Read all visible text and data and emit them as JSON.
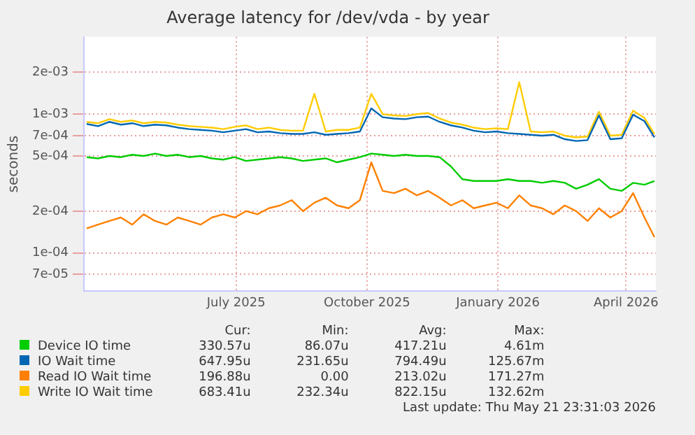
{
  "chart_data": {
    "type": "line",
    "title": "Average latency for /dev/vda - by year",
    "ylabel": "seconds",
    "log": "y",
    "x": [
      "2025-03-18",
      "2025-03-26",
      "2025-04-03",
      "2025-04-11",
      "2025-04-19",
      "2025-04-27",
      "2025-05-05",
      "2025-05-13",
      "2025-05-21",
      "2025-05-29",
      "2025-06-06",
      "2025-06-14",
      "2025-06-22",
      "2025-06-30",
      "2025-07-08",
      "2025-07-16",
      "2025-07-24",
      "2025-08-01",
      "2025-08-09",
      "2025-08-17",
      "2025-08-25",
      "2025-09-02",
      "2025-09-10",
      "2025-09-18",
      "2025-09-26",
      "2025-10-04",
      "2025-10-12",
      "2025-10-20",
      "2025-10-28",
      "2025-11-05",
      "2025-11-13",
      "2025-11-21",
      "2025-11-29",
      "2025-12-07",
      "2025-12-15",
      "2025-12-23",
      "2025-12-31",
      "2026-01-08",
      "2026-01-16",
      "2026-01-24",
      "2026-02-01",
      "2026-02-09",
      "2026-02-17",
      "2026-02-25",
      "2026-03-05",
      "2026-03-13",
      "2026-03-21",
      "2026-03-29",
      "2026-04-06",
      "2026-04-14",
      "2026-04-21"
    ],
    "series": [
      {
        "name": "Device IO time",
        "color": "#00cc00",
        "values": [
          0.00049,
          0.00048,
          0.0005,
          0.00049,
          0.00051,
          0.0005,
          0.00052,
          0.0005,
          0.00051,
          0.00049,
          0.0005,
          0.00048,
          0.00047,
          0.00049,
          0.00046,
          0.00047,
          0.00048,
          0.00049,
          0.00048,
          0.00046,
          0.00047,
          0.00048,
          0.00045,
          0.00047,
          0.00049,
          0.00052,
          0.00051,
          0.0005,
          0.00051,
          0.0005,
          0.0005,
          0.00049,
          0.00042,
          0.00034,
          0.00033,
          0.00033,
          0.00033,
          0.00034,
          0.00033,
          0.00033,
          0.00032,
          0.00033,
          0.00032,
          0.00029,
          0.00031,
          0.00034,
          0.00029,
          0.00028,
          0.00032,
          0.00031,
          0.00033
        ]
      },
      {
        "name": "IO Wait time",
        "color": "#0066b3",
        "values": [
          0.00085,
          0.00082,
          0.00088,
          0.00084,
          0.00086,
          0.00082,
          0.00084,
          0.00083,
          0.0008,
          0.00078,
          0.00077,
          0.00076,
          0.00074,
          0.00076,
          0.00078,
          0.00074,
          0.00075,
          0.00073,
          0.00072,
          0.00072,
          0.00074,
          0.00071,
          0.00072,
          0.00073,
          0.00075,
          0.0011,
          0.00095,
          0.00093,
          0.00092,
          0.00095,
          0.00096,
          0.00088,
          0.00083,
          0.0008,
          0.00076,
          0.00074,
          0.00075,
          0.00073,
          0.00072,
          0.00071,
          0.0007,
          0.00071,
          0.00066,
          0.00064,
          0.00065,
          0.00098,
          0.00066,
          0.00067,
          0.00099,
          0.00089,
          0.00068
        ]
      },
      {
        "name": "Read IO Wait time",
        "color": "#ff8000",
        "values": [
          0.00015,
          0.00016,
          0.00017,
          0.00018,
          0.00016,
          0.00019,
          0.00017,
          0.00016,
          0.00018,
          0.00017,
          0.00016,
          0.00018,
          0.00019,
          0.00018,
          0.0002,
          0.00019,
          0.00021,
          0.00022,
          0.00024,
          0.0002,
          0.00023,
          0.00025,
          0.00022,
          0.00021,
          0.00024,
          0.00045,
          0.00028,
          0.00027,
          0.00029,
          0.00026,
          0.00028,
          0.00025,
          0.00022,
          0.00024,
          0.00021,
          0.00022,
          0.00023,
          0.00021,
          0.00026,
          0.00022,
          0.00021,
          0.00019,
          0.00022,
          0.0002,
          0.00017,
          0.00021,
          0.00018,
          0.0002,
          0.00027,
          0.00018,
          0.00013
        ]
      },
      {
        "name": "Write IO Wait time",
        "color": "#ffcc00",
        "values": [
          0.00088,
          0.00086,
          0.00092,
          0.00088,
          0.0009,
          0.00086,
          0.00088,
          0.00087,
          0.00084,
          0.00082,
          0.00081,
          0.0008,
          0.00078,
          0.00081,
          0.00083,
          0.00078,
          0.0008,
          0.00077,
          0.00076,
          0.00076,
          0.0014,
          0.00075,
          0.00077,
          0.00077,
          0.0008,
          0.0014,
          0.001,
          0.00098,
          0.00097,
          0.001,
          0.00102,
          0.00093,
          0.00087,
          0.00084,
          0.0008,
          0.00078,
          0.00079,
          0.00078,
          0.0017,
          0.00075,
          0.00074,
          0.00075,
          0.0007,
          0.00068,
          0.00069,
          0.00104,
          0.0007,
          0.00071,
          0.00106,
          0.00094,
          0.00072
        ]
      }
    ],
    "xlim": [
      "2025-03-16",
      "2026-04-22"
    ],
    "xticks": [
      {
        "value": "2025-07-01",
        "label": "July 2025"
      },
      {
        "value": "2025-10-01",
        "label": "October 2025"
      },
      {
        "value": "2026-01-01",
        "label": "January 2026"
      },
      {
        "value": "2026-04-01",
        "label": "April 2026"
      }
    ],
    "ylim": [
      5.3e-05,
      0.0036
    ],
    "yticks": [
      {
        "value": 7e-05,
        "label": "7e-05"
      },
      {
        "value": 0.0001,
        "label": "1e-04"
      },
      {
        "value": 0.0002,
        "label": "2e-04"
      },
      {
        "value": 0.0005,
        "label": "5e-04"
      },
      {
        "value": 0.0007,
        "label": "7e-04"
      },
      {
        "value": 0.001,
        "label": "1e-03"
      },
      {
        "value": 0.002,
        "label": "2e-03"
      }
    ],
    "grid": true,
    "legend": "bottom",
    "marker": "none",
    "line_style": "solid",
    "annotations": [
      "Cur:",
      "Min:",
      "Avg:",
      "Max:",
      "330.57u",
      "86.07u",
      "417.21u",
      "4.61m",
      "647.95u",
      "231.65u",
      "794.49u",
      "125.67m",
      "196.88u",
      "0.00",
      "213.02u",
      "171.27m",
      "683.41u",
      "232.34u",
      "822.15u",
      "132.62m",
      "Last update: Thu May 21 23:31:03 2026"
    ]
  }
}
